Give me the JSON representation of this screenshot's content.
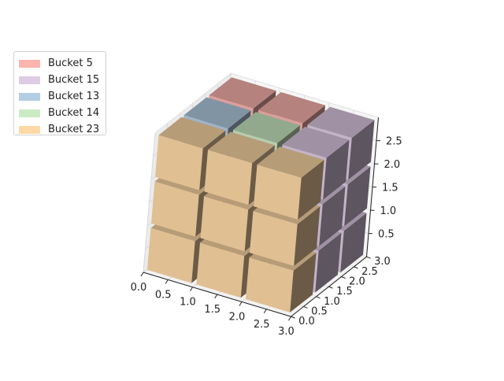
{
  "chart_data": {
    "type": "bar3d",
    "title": "",
    "xlabel": "",
    "ylabel": "",
    "zlabel": "",
    "xlim": [
      0,
      3
    ],
    "ylim": [
      0,
      3
    ],
    "zlim": [
      0,
      3
    ],
    "x_ticks": [
      "0.0",
      "0.5",
      "1.0",
      "1.5",
      "2.0",
      "2.5",
      "3.0"
    ],
    "y_ticks": [
      "0.0",
      "0.5",
      "1.0",
      "1.5",
      "2.0",
      "2.5",
      "3.0"
    ],
    "z_ticks": [
      "0.5",
      "1.0",
      "1.5",
      "2.0",
      "2.5"
    ],
    "legend_position": "upper-left",
    "legend": [
      {
        "name": "Bucket 5",
        "color": "#fbb4ae"
      },
      {
        "name": "Bucket 15",
        "color": "#decbe4"
      },
      {
        "name": "Bucket 13",
        "color": "#b3cde3"
      },
      {
        "name": "Bucket 14",
        "color": "#ccebc5"
      },
      {
        "name": "Bucket 23",
        "color": "#fed9a6"
      }
    ],
    "cubes": [
      {
        "x": 0,
        "y": 0,
        "z": 0,
        "bucket": "Bucket 23"
      },
      {
        "x": 1,
        "y": 0,
        "z": 0,
        "bucket": "Bucket 23"
      },
      {
        "x": 2,
        "y": 0,
        "z": 0,
        "bucket": "Bucket 23"
      },
      {
        "x": 0,
        "y": 0,
        "z": 1,
        "bucket": "Bucket 23"
      },
      {
        "x": 1,
        "y": 0,
        "z": 1,
        "bucket": "Bucket 23"
      },
      {
        "x": 2,
        "y": 0,
        "z": 1,
        "bucket": "Bucket 23"
      },
      {
        "x": 0,
        "y": 0,
        "z": 2,
        "bucket": "Bucket 23"
      },
      {
        "x": 1,
        "y": 0,
        "z": 2,
        "bucket": "Bucket 23"
      },
      {
        "x": 2,
        "y": 0,
        "z": 2,
        "bucket": "Bucket 23"
      },
      {
        "x": 0,
        "y": 1,
        "z": 2,
        "bucket": "Bucket 13"
      },
      {
        "x": 1,
        "y": 1,
        "z": 2,
        "bucket": "Bucket 14"
      },
      {
        "x": 2,
        "y": 1,
        "z": 2,
        "bucket": "Bucket 15"
      },
      {
        "x": 0,
        "y": 2,
        "z": 2,
        "bucket": "Bucket 5"
      },
      {
        "x": 1,
        "y": 2,
        "z": 2,
        "bucket": "Bucket 5"
      },
      {
        "x": 2,
        "y": 2,
        "z": 2,
        "bucket": "Bucket 15"
      },
      {
        "x": 2,
        "y": 1,
        "z": 0,
        "bucket": "Bucket 15"
      },
      {
        "x": 2,
        "y": 2,
        "z": 0,
        "bucket": "Bucket 15"
      },
      {
        "x": 2,
        "y": 1,
        "z": 1,
        "bucket": "Bucket 15"
      },
      {
        "x": 2,
        "y": 2,
        "z": 1,
        "bucket": "Bucket 15"
      },
      {
        "x": 0,
        "y": 1,
        "z": 0,
        "bucket": "Bucket 23"
      },
      {
        "x": 1,
        "y": 1,
        "z": 0,
        "bucket": "Bucket 23"
      },
      {
        "x": 0,
        "y": 2,
        "z": 0,
        "bucket": "Bucket 23"
      },
      {
        "x": 1,
        "y": 2,
        "z": 0,
        "bucket": "Bucket 23"
      },
      {
        "x": 0,
        "y": 1,
        "z": 1,
        "bucket": "Bucket 23"
      },
      {
        "x": 1,
        "y": 1,
        "z": 1,
        "bucket": "Bucket 23"
      },
      {
        "x": 0,
        "y": 2,
        "z": 1,
        "bucket": "Bucket 23"
      },
      {
        "x": 1,
        "y": 2,
        "z": 1,
        "bucket": "Bucket 23"
      }
    ]
  }
}
